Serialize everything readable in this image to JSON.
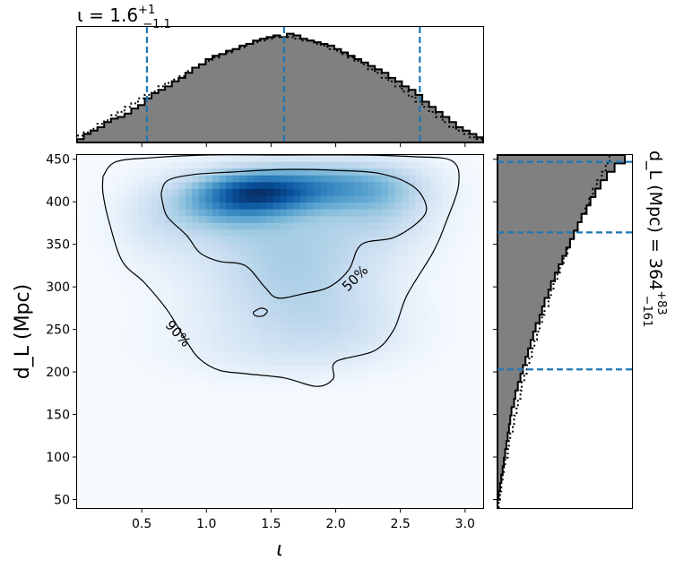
{
  "chart_data": [
    {
      "panel": "top-marginal",
      "type": "histogram",
      "title_main": "ι = 1.6",
      "title_sup": "+1",
      "title_sub": "−1.1",
      "xlim": [
        0.0,
        3.14
      ],
      "quantile_lines": [
        0.54,
        1.6,
        2.65
      ],
      "line_color": "#1f77b4",
      "fill_color": "#808080",
      "solid_hist": [
        2,
        5,
        7,
        9,
        12,
        14,
        15,
        17,
        20,
        22,
        26,
        29,
        31,
        33,
        36,
        38,
        41,
        44,
        46,
        49,
        51,
        52,
        54,
        55,
        57,
        58,
        60,
        61,
        62,
        63,
        62,
        64,
        63,
        61,
        60,
        59,
        58,
        57,
        55,
        53,
        51,
        49,
        47,
        45,
        43,
        41,
        38,
        36,
        33,
        31,
        28,
        24,
        21,
        18,
        15,
        12,
        9,
        7,
        5,
        3
      ],
      "dotted_hist": [
        4,
        6,
        8,
        11,
        13,
        16,
        18,
        21,
        23,
        26,
        28,
        30,
        33,
        35,
        37,
        39,
        42,
        44,
        46,
        48,
        50,
        52,
        53,
        55,
        56,
        58,
        59,
        60,
        61,
        62,
        62,
        62,
        61,
        60,
        60,
        58,
        57,
        55,
        54,
        52,
        50,
        48,
        46,
        43,
        41,
        38,
        36,
        33,
        30,
        27,
        24,
        21,
        18,
        15,
        12,
        9,
        7,
        5,
        3,
        2
      ]
    },
    {
      "panel": "joint",
      "type": "heatmap",
      "xlabel": "ι",
      "ylabel": "d_L (Mpc)",
      "xlim": [
        0.0,
        3.14
      ],
      "ylim": [
        40,
        455
      ],
      "xticks": [
        0.5,
        1.0,
        1.5,
        2.0,
        2.5,
        3.0
      ],
      "xtick_labels": [
        "0.5",
        "1.0",
        "1.5",
        "2.0",
        "2.5",
        "3.0"
      ],
      "yticks": [
        50,
        100,
        150,
        200,
        250,
        300,
        350,
        400,
        450
      ],
      "ytick_labels": [
        "50",
        "100",
        "150",
        "200",
        "250",
        "300",
        "350",
        "400",
        "450"
      ],
      "colormap": "Blues",
      "contours": [
        {
          "label": "50%",
          "points": [
            [
              0.65,
              410
            ],
            [
              0.7,
              425
            ],
            [
              0.9,
              432
            ],
            [
              1.2,
              435
            ],
            [
              1.6,
              438
            ],
            [
              2.0,
              437
            ],
            [
              2.35,
              433
            ],
            [
              2.6,
              418
            ],
            [
              2.7,
              395
            ],
            [
              2.65,
              378
            ],
            [
              2.45,
              358
            ],
            [
              2.2,
              350
            ],
            [
              2.1,
              320
            ],
            [
              1.95,
              300
            ],
            [
              1.75,
              292
            ],
            [
              1.55,
              287
            ],
            [
              1.45,
              300
            ],
            [
              1.3,
              325
            ],
            [
              1.1,
              330
            ],
            [
              0.95,
              340
            ],
            [
              0.85,
              360
            ],
            [
              0.7,
              382
            ],
            [
              0.66,
              400
            ],
            [
              0.65,
              410
            ]
          ]
        },
        {
          "label": "90%",
          "points": [
            [
              0.2,
              430
            ],
            [
              0.3,
              447
            ],
            [
              0.6,
              452
            ],
            [
              1.0,
              455
            ],
            [
              1.6,
              455
            ],
            [
              2.2,
              455
            ],
            [
              2.6,
              453
            ],
            [
              2.9,
              448
            ],
            [
              2.95,
              420
            ],
            [
              2.85,
              375
            ],
            [
              2.75,
              340
            ],
            [
              2.55,
              290
            ],
            [
              2.45,
              250
            ],
            [
              2.3,
              225
            ],
            [
              2.0,
              212
            ],
            [
              1.98,
              192
            ],
            [
              1.85,
              183
            ],
            [
              1.6,
              193
            ],
            [
              1.3,
              198
            ],
            [
              1.1,
              202
            ],
            [
              0.95,
              215
            ],
            [
              0.85,
              235
            ],
            [
              0.7,
              272
            ],
            [
              0.52,
              305
            ],
            [
              0.35,
              330
            ],
            [
              0.25,
              375
            ],
            [
              0.2,
              410
            ],
            [
              0.2,
              430
            ]
          ]
        },
        {
          "label": "",
          "points": [
            [
              1.36,
              270
            ],
            [
              1.42,
              275
            ],
            [
              1.47,
              272
            ],
            [
              1.44,
              266
            ],
            [
              1.38,
              266
            ],
            [
              1.36,
              270
            ]
          ]
        }
      ],
      "label_positions": [
        {
          "text": "50%",
          "x": 2.15,
          "y": 310,
          "angle": -45
        },
        {
          "text": "90%",
          "x": 0.78,
          "y": 245,
          "angle": 48
        }
      ],
      "density_blobs": [
        {
          "x": 1.4,
          "y": 410,
          "sx": 0.3,
          "sy": 18,
          "w": 1.0
        },
        {
          "x": 1.9,
          "y": 420,
          "sx": 0.45,
          "sy": 20,
          "w": 0.95
        },
        {
          "x": 1.1,
          "y": 400,
          "sx": 0.3,
          "sy": 25,
          "w": 0.7
        },
        {
          "x": 1.6,
          "y": 370,
          "sx": 0.6,
          "sy": 45,
          "w": 0.6
        },
        {
          "x": 1.7,
          "y": 310,
          "sx": 0.5,
          "sy": 40,
          "w": 0.45
        },
        {
          "x": 1.6,
          "y": 260,
          "sx": 0.6,
          "sy": 35,
          "w": 0.3
        },
        {
          "x": 1.5,
          "y": 220,
          "sx": 0.6,
          "sy": 25,
          "w": 0.2
        },
        {
          "x": 2.4,
          "y": 400,
          "sx": 0.3,
          "sy": 35,
          "w": 0.5
        },
        {
          "x": 0.6,
          "y": 380,
          "sx": 0.25,
          "sy": 35,
          "w": 0.3
        },
        {
          "x": 2.1,
          "y": 250,
          "sx": 0.4,
          "sy": 30,
          "w": 0.2
        }
      ]
    },
    {
      "panel": "right-marginal",
      "type": "histogram",
      "label_main": "d_L (Mpc) = 364",
      "label_sup": "+83",
      "label_sub": "−161",
      "ylim": [
        40,
        455
      ],
      "quantile_lines": [
        203,
        364,
        447
      ],
      "line_color": "#1f77b4",
      "fill_color": "#808080",
      "solid_hist": [
        0.0,
        0.01,
        0.02,
        0.03,
        0.04,
        0.05,
        0.06,
        0.07,
        0.08,
        0.09,
        0.1,
        0.11,
        0.13,
        0.14,
        0.16,
        0.18,
        0.2,
        0.22,
        0.24,
        0.26,
        0.28,
        0.3,
        0.33,
        0.35,
        0.37,
        0.4,
        0.42,
        0.45,
        0.48,
        0.51,
        0.54,
        0.57,
        0.6,
        0.63,
        0.66,
        0.7,
        0.73,
        0.77,
        0.81,
        0.86,
        0.92,
        1.0
      ],
      "dotted_hist": [
        0.01,
        0.02,
        0.03,
        0.04,
        0.05,
        0.06,
        0.08,
        0.09,
        0.1,
        0.12,
        0.13,
        0.15,
        0.16,
        0.18,
        0.19,
        0.21,
        0.23,
        0.25,
        0.27,
        0.29,
        0.31,
        0.33,
        0.35,
        0.37,
        0.4,
        0.42,
        0.44,
        0.47,
        0.49,
        0.52,
        0.55,
        0.57,
        0.6,
        0.63,
        0.66,
        0.69,
        0.72,
        0.75,
        0.78,
        0.82,
        0.85,
        0.88
      ]
    }
  ]
}
